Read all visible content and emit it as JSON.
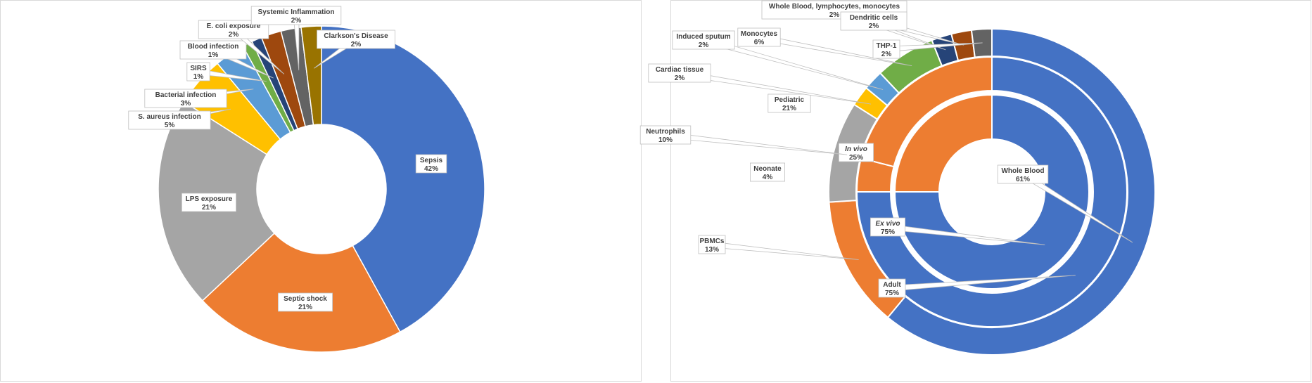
{
  "chart_data": [
    {
      "type": "donut",
      "slices": [
        {
          "label": "Sepsis",
          "pct_label": "42%",
          "value": 42,
          "color": "#4472C4"
        },
        {
          "label": "Septic shock",
          "pct_label": "21%",
          "value": 21,
          "color": "#ED7D31"
        },
        {
          "label": "LPS exposure",
          "pct_label": "21%",
          "value": 21,
          "color": "#A5A5A5"
        },
        {
          "label": "S. aureus infection",
          "pct_label": "5%",
          "value": 5,
          "color": "#FFC000"
        },
        {
          "label": "Bacterial infection",
          "pct_label": "3%",
          "value": 3,
          "color": "#5B9BD5"
        },
        {
          "label": "SIRS",
          "pct_label": "1%",
          "value": 1,
          "color": "#70AD47"
        },
        {
          "label": "Blood infection",
          "pct_label": "1%",
          "value": 1,
          "color": "#264478"
        },
        {
          "label": "E. coli exposure",
          "pct_label": "2%",
          "value": 2,
          "color": "#9E480E"
        },
        {
          "label": "Systemic Inflammation",
          "pct_label": "2%",
          "value": 2,
          "color": "#636363"
        },
        {
          "label": "Clarkson's Disease",
          "pct_label": "2%",
          "value": 2,
          "color": "#997300"
        }
      ]
    },
    {
      "type": "donut",
      "rings": [
        {
          "ring": "inner",
          "slices": [
            {
              "label": "In vivo",
              "pct_label": "25%",
              "value": 25,
              "color": "#ED7D31",
              "italic": true
            },
            {
              "label": "Ex vivo",
              "pct_label": "75%",
              "value": 75,
              "color": "#4472C4",
              "italic": true
            }
          ]
        },
        {
          "ring": "middle",
          "slices": [
            {
              "label": "Pediatric",
              "pct_label": "21%",
              "value": 21,
              "color": "#ED7D31"
            },
            {
              "label": "Neonate",
              "pct_label": "4%",
              "value": 4,
              "color": "#ED7D31"
            },
            {
              "label": "Adult",
              "pct_label": "75%",
              "value": 75,
              "color": "#4472C4"
            }
          ]
        },
        {
          "ring": "outer",
          "slices": [
            {
              "label": "PBMCs",
              "pct_label": "13%",
              "value": 13,
              "color": "#ED7D31"
            },
            {
              "label": "Neutrophils",
              "pct_label": "10%",
              "value": 10,
              "color": "#A5A5A5"
            },
            {
              "label": "Cardiac tissue",
              "pct_label": "2%",
              "value": 2,
              "color": "#FFC000"
            },
            {
              "label": "Induced sputum",
              "pct_label": "2%",
              "value": 2,
              "color": "#5B9BD5"
            },
            {
              "label": "Monocytes",
              "pct_label": "6%",
              "value": 6,
              "color": "#70AD47"
            },
            {
              "label": "Whole Blood, lymphocytes, monocytes",
              "pct_label": "2%",
              "value": 2,
              "color": "#264478"
            },
            {
              "label": "Dendritic cells",
              "pct_label": "2%",
              "value": 2,
              "color": "#9E480E"
            },
            {
              "label": "THP-1",
              "pct_label": "2%",
              "value": 2,
              "color": "#636363"
            },
            {
              "label": "Whole Blood",
              "pct_label": "61%",
              "value": 61,
              "color": "#4472C4"
            }
          ]
        }
      ]
    }
  ]
}
